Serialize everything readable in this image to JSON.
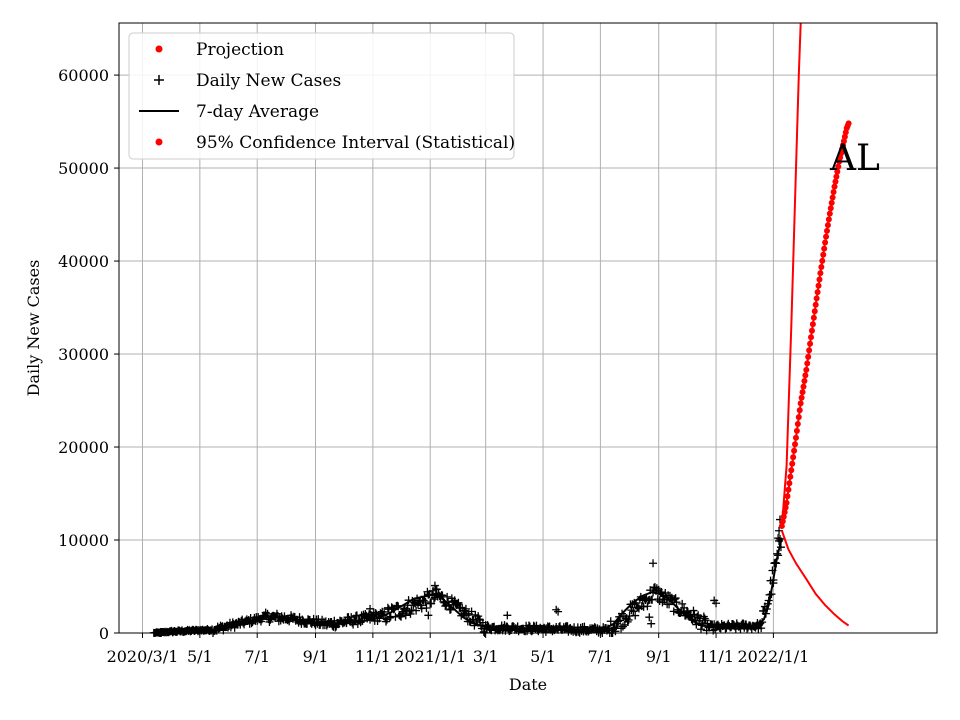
{
  "chart_data": {
    "type": "line",
    "title": "",
    "annotation": "AL",
    "xlabel": "Date",
    "ylabel": "Daily New Cases",
    "xlim": [
      "2020-02-05",
      "2022-06-24"
    ],
    "ylim": [
      0,
      65600
    ],
    "grid": true,
    "legend_position": "top-left",
    "x_ticks": [
      {
        "date": "2020-03-01",
        "label": "2020/3/1"
      },
      {
        "date": "2020-05-01",
        "label": "5/1"
      },
      {
        "date": "2020-07-01",
        "label": "7/1"
      },
      {
        "date": "2020-09-01",
        "label": "9/1"
      },
      {
        "date": "2020-11-01",
        "label": "11/1"
      },
      {
        "date": "2021-01-01",
        "label": "2021/1/1"
      },
      {
        "date": "2021-03-01",
        "label": "3/1"
      },
      {
        "date": "2021-05-01",
        "label": "5/1"
      },
      {
        "date": "2021-07-01",
        "label": "7/1"
      },
      {
        "date": "2021-09-01",
        "label": "9/1"
      },
      {
        "date": "2021-11-01",
        "label": "11/1"
      },
      {
        "date": "2022-01-01",
        "label": "2022/1/1"
      }
    ],
    "y_ticks": [
      0,
      10000,
      20000,
      30000,
      40000,
      50000,
      60000
    ],
    "legend": [
      {
        "label": "Projection",
        "marker": "dot",
        "color": "#ff0000"
      },
      {
        "label": "Daily New Cases",
        "marker": "plus",
        "color": "#000000"
      },
      {
        "label": "7-day Average",
        "marker": "line",
        "color": "#000000"
      },
      {
        "label": "95% Confidence Interval (Statistical)",
        "marker": "dot",
        "color": "#ff0000"
      }
    ],
    "series": [
      {
        "name": "7-day Average",
        "color": "#000000",
        "points": [
          [
            "2020-03-13",
            5
          ],
          [
            "2020-03-25",
            100
          ],
          [
            "2020-04-10",
            200
          ],
          [
            "2020-04-25",
            240
          ],
          [
            "2020-05-10",
            300
          ],
          [
            "2020-05-25",
            450
          ],
          [
            "2020-06-10",
            800
          ],
          [
            "2020-06-25",
            1150
          ],
          [
            "2020-07-05",
            1500
          ],
          [
            "2020-07-15",
            1800
          ],
          [
            "2020-07-25",
            1750
          ],
          [
            "2020-08-05",
            1500
          ],
          [
            "2020-08-20",
            1150
          ],
          [
            "2020-09-05",
            1000
          ],
          [
            "2020-09-20",
            950
          ],
          [
            "2020-10-05",
            1050
          ],
          [
            "2020-10-20",
            1250
          ],
          [
            "2020-11-05",
            1550
          ],
          [
            "2020-11-20",
            2200
          ],
          [
            "2020-12-05",
            3100
          ],
          [
            "2020-12-15",
            3700
          ],
          [
            "2020-12-25",
            3900
          ],
          [
            "2021-01-05",
            4200
          ],
          [
            "2021-01-15",
            3600
          ],
          [
            "2021-01-25",
            2700
          ],
          [
            "2021-02-05",
            1700
          ],
          [
            "2021-02-15",
            1050
          ],
          [
            "2021-02-28",
            700
          ],
          [
            "2021-03-15",
            500
          ],
          [
            "2021-04-01",
            350
          ],
          [
            "2021-04-20",
            350
          ],
          [
            "2021-05-10",
            350
          ],
          [
            "2021-06-01",
            250
          ],
          [
            "2021-06-20",
            200
          ],
          [
            "2021-07-05",
            400
          ],
          [
            "2021-07-15",
            1000
          ],
          [
            "2021-07-25",
            2200
          ],
          [
            "2021-08-05",
            3300
          ],
          [
            "2021-08-15",
            4000
          ],
          [
            "2021-08-25",
            4400
          ],
          [
            "2021-09-05",
            4100
          ],
          [
            "2021-09-15",
            3300
          ],
          [
            "2021-09-25",
            2300
          ],
          [
            "2021-10-05",
            1400
          ],
          [
            "2021-10-15",
            900
          ],
          [
            "2021-10-25",
            650
          ],
          [
            "2021-11-05",
            550
          ],
          [
            "2021-11-15",
            500
          ],
          [
            "2021-11-25",
            450
          ],
          [
            "2021-12-05",
            550
          ],
          [
            "2021-12-15",
            800
          ],
          [
            "2021-12-22",
            1500
          ],
          [
            "2021-12-27",
            3000
          ],
          [
            "2021-12-31",
            5200
          ],
          [
            "2022-01-04",
            7600
          ],
          [
            "2022-01-07",
            9000
          ],
          [
            "2022-01-10",
            10200
          ]
        ]
      },
      {
        "name": "Projection",
        "color": "#ff0000",
        "points": [
          [
            "2022-01-10",
            11500
          ],
          [
            "2022-01-15",
            14000
          ],
          [
            "2022-01-20",
            17500
          ],
          [
            "2022-01-25",
            21000
          ],
          [
            "2022-01-30",
            24700
          ],
          [
            "2022-02-05",
            28300
          ],
          [
            "2022-02-10",
            31800
          ],
          [
            "2022-02-15",
            35300
          ],
          [
            "2022-02-20",
            38700
          ],
          [
            "2022-02-25",
            42000
          ],
          [
            "2022-03-02",
            45100
          ],
          [
            "2022-03-07",
            48000
          ],
          [
            "2022-03-12",
            50700
          ],
          [
            "2022-03-17",
            52900
          ],
          [
            "2022-03-20",
            54300
          ],
          [
            "2022-03-22",
            54800
          ]
        ]
      },
      {
        "name": "95% Confidence Interval (Statistical) upper",
        "color": "#ff0000",
        "points": [
          [
            "2022-01-10",
            11500
          ],
          [
            "2022-01-15",
            18000
          ],
          [
            "2022-01-20",
            33000
          ],
          [
            "2022-01-25",
            50000
          ],
          [
            "2022-01-28",
            60000
          ],
          [
            "2022-01-30",
            65600
          ]
        ]
      },
      {
        "name": "95% Confidence Interval (Statistical) lower",
        "color": "#ff0000",
        "points": [
          [
            "2022-01-10",
            11000
          ],
          [
            "2022-01-17",
            9000
          ],
          [
            "2022-01-25",
            7500
          ],
          [
            "2022-02-05",
            5800
          ],
          [
            "2022-02-15",
            4200
          ],
          [
            "2022-02-25",
            3000
          ],
          [
            "2022-03-07",
            2000
          ],
          [
            "2022-03-15",
            1300
          ],
          [
            "2022-03-22",
            800
          ]
        ]
      }
    ],
    "daily_new_cases": [
      {
        "start": "2020-03-13",
        "end": "2020-04-01",
        "base": [
          0,
          150
        ],
        "noise": 60
      },
      {
        "start": "2020-04-01",
        "end": "2020-05-15",
        "base": [
          150,
          350
        ],
        "noise": 120
      },
      {
        "start": "2020-05-15",
        "end": "2020-07-10",
        "base": [
          350,
          1700
        ],
        "noise": 350
      },
      {
        "start": "2020-07-10",
        "end": "2020-08-01",
        "base": [
          1700,
          1600
        ],
        "noise": 500
      },
      {
        "start": "2020-08-01",
        "end": "2020-09-15",
        "base": [
          1600,
          950
        ],
        "noise": 400
      },
      {
        "start": "2020-09-15",
        "end": "2020-11-15",
        "base": [
          950,
          1900
        ],
        "noise": 500
      },
      {
        "start": "2020-11-15",
        "end": "2021-01-10",
        "base": [
          1900,
          4000
        ],
        "noise": 900
      },
      {
        "start": "2021-01-10",
        "end": "2021-03-01",
        "base": [
          4000,
          600
        ],
        "noise": 700
      },
      {
        "start": "2021-03-01",
        "end": "2021-07-10",
        "base": [
          600,
          300
        ],
        "noise": 350
      },
      {
        "start": "2021-07-10",
        "end": "2021-08-28",
        "base": [
          300,
          4400
        ],
        "noise": 900
      },
      {
        "start": "2021-08-28",
        "end": "2021-10-25",
        "base": [
          4400,
          600
        ],
        "noise": 800
      },
      {
        "start": "2021-10-25",
        "end": "2021-12-20",
        "base": [
          600,
          800
        ],
        "noise": 350
      },
      {
        "start": "2021-12-20",
        "end": "2022-01-10",
        "base": [
          800,
          10000
        ],
        "noise": 1300
      }
    ],
    "daily_new_cases_outliers": [
      [
        "2020-03-20",
        0
      ],
      [
        "2020-03-21",
        20
      ],
      [
        "2020-10-29",
        2600
      ],
      [
        "2020-11-02",
        2200
      ],
      [
        "2020-12-30",
        1900
      ],
      [
        "2021-01-06",
        5100
      ],
      [
        "2021-01-08",
        4700
      ],
      [
        "2021-03-24",
        1900
      ],
      [
        "2021-05-15",
        2500
      ],
      [
        "2021-05-17",
        2300
      ],
      [
        "2021-08-22",
        1700
      ],
      [
        "2021-08-24",
        1000
      ],
      [
        "2021-08-26",
        7500
      ],
      [
        "2021-10-30",
        3500
      ],
      [
        "2021-11-01",
        3200
      ],
      [
        "2022-01-08",
        12200
      ],
      [
        "2022-01-07",
        11000
      ],
      [
        "2022-01-06",
        10200
      ],
      [
        "2022-01-03",
        7500
      ],
      [
        "2022-01-01",
        5700
      ]
    ]
  }
}
